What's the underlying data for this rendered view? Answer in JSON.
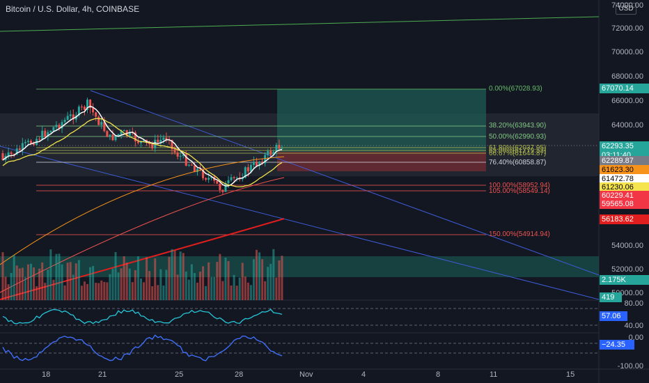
{
  "header": {
    "title": "Bitcoin / U.S. Dollar, 4h, COINBASE",
    "currency_button": "USD"
  },
  "price_axis": {
    "labels": [
      "72000.00",
      "70000.00",
      "68000.00",
      "66000.00",
      "64000.00",
      "54000.00",
      "52000.00",
      "50000.00"
    ],
    "top_label": "74000.00"
  },
  "price_tags": [
    {
      "text": "67070.14",
      "bg": "#26a69a",
      "fg": "#ffffff"
    },
    {
      "text": "62293.35",
      "bg": "#26a69a",
      "fg": "#ffffff"
    },
    {
      "text": "03:11:40",
      "bg": "#26a69a",
      "fg": "#ffffff"
    },
    {
      "text": "62289.87",
      "bg": "#787b86",
      "fg": "#ffffff"
    },
    {
      "text": "61623.30",
      "bg": "#f7931a",
      "fg": "#000000"
    },
    {
      "text": "61472.78",
      "bg": "#ffffff",
      "fg": "#000000"
    },
    {
      "text": "61230.06",
      "bg": "#f5e44e",
      "fg": "#000000"
    },
    {
      "text": "60229.41",
      "bg": "#f23645",
      "fg": "#ffffff"
    },
    {
      "text": "59565.08",
      "bg": "#f23645",
      "fg": "#ffffff"
    },
    {
      "text": "56183.62",
      "bg": "#e01e1e",
      "fg": "#ffffff"
    },
    {
      "text": "2.175K",
      "bg": "#26a69a",
      "fg": "#ffffff"
    },
    {
      "text": "419",
      "bg": "#26a69a",
      "fg": "#ffffff"
    }
  ],
  "fib_levels": [
    {
      "text": "0.00%(67028.93)",
      "color": "#66bb6a"
    },
    {
      "text": "38.20%(63943.90)",
      "color": "#81c784"
    },
    {
      "text": "50.00%(62990.93)",
      "color": "#81c784"
    },
    {
      "text": "61.80%(62037.95)",
      "color": "#aeb74f"
    },
    {
      "text": "65.00%(61779.52)",
      "color": "#aeb74f"
    },
    {
      "text": "66.67%(61644.87)",
      "color": "#aeb74f"
    },
    {
      "text": "76.40%(60858.87)",
      "color": "#d1d4dc"
    },
    {
      "text": "100.00%(58952.94)",
      "color": "#ef5350"
    },
    {
      "text": "105.00%(58549.14)",
      "color": "#ef5350"
    },
    {
      "text": "150.00%(54914.94)",
      "color": "#ef5350"
    }
  ],
  "indicator1": {
    "labels": [
      "80.00",
      "40.00"
    ],
    "value": "57.06",
    "value_bg": "#2962ff"
  },
  "indicator2": {
    "labels": [
      "0.00",
      "-100.00"
    ],
    "value": "−24.35",
    "value_bg": "#2962ff"
  },
  "time_axis": {
    "labels": [
      "18",
      "21",
      "25",
      "28",
      "Nov",
      "4",
      "8",
      "11",
      "15"
    ]
  },
  "colors": {
    "bg": "#131722",
    "up": "#26a69a",
    "down": "#ef5350"
  }
}
